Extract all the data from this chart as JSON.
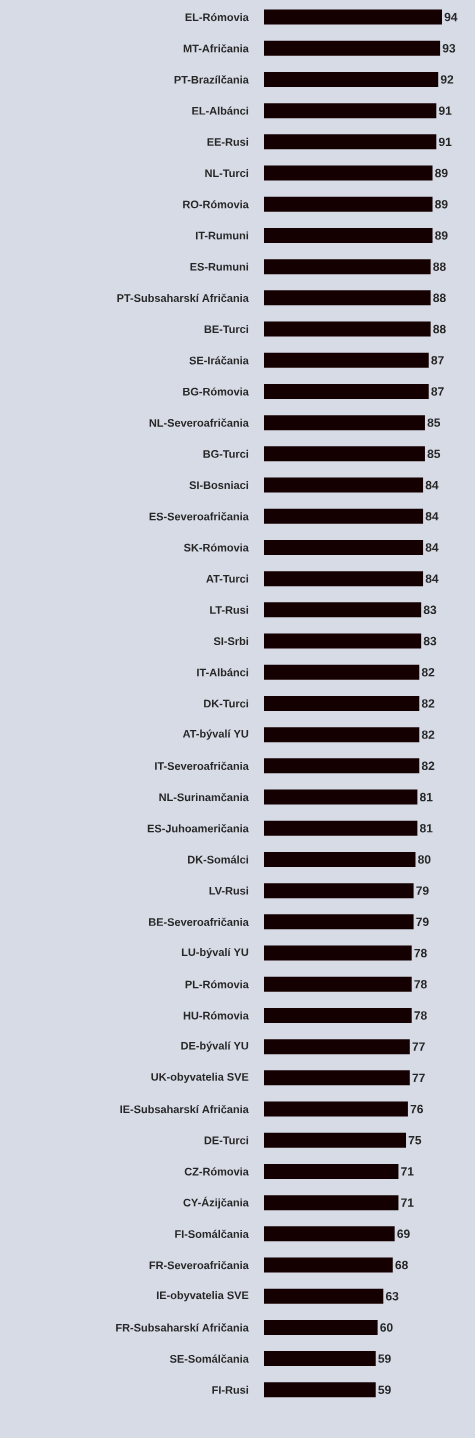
{
  "chart_data": {
    "type": "bar",
    "orientation": "horizontal",
    "categories": [
      "EL-Rómovia",
      "MT-Afričania",
      "PT-Brazílčania",
      "EL-Albánci",
      "EE-Rusi",
      "NL-Turci",
      "RO-Rómovia",
      "IT-Rumuni",
      "ES-Rumuni",
      "PT-Subsaharskí Afričania",
      "BE-Turci",
      "SE-Iráčania",
      "BG-Rómovia",
      "NL-Severoafričania",
      "BG-Turci",
      "SI-Bosniaci",
      "ES-Severoafričania",
      "SK-Rómovia",
      "AT-Turci",
      "LT-Rusi",
      "SI-Srbi",
      "IT-Albánci",
      "DK-Turci",
      "AT-bývalí YU",
      "IT-Severoafričania",
      "NL-Surinamčania",
      "ES-Juhoameričania",
      "DK-Somálci",
      "LV-Rusi",
      "BE-Severoafričania",
      "LU-bývalí YU",
      "PL-Rómovia",
      "HU-Rómovia",
      "DE-bývalí YU",
      "UK-obyvatelia SVE",
      "IE-Subsaharskí Afričania",
      "DE-Turci",
      "CZ-Rómovia",
      "CY-Ázijčania",
      "FI-Somálčania",
      "FR-Severoafričania",
      "IE-obyvatelia SVE",
      "FR-Subsaharskí Afričania",
      "SE-Somálčania",
      "FI-Rusi"
    ],
    "values": [
      94,
      93,
      92,
      91,
      91,
      89,
      89,
      89,
      88,
      88,
      88,
      87,
      87,
      85,
      85,
      84,
      84,
      84,
      84,
      83,
      83,
      82,
      82,
      82,
      82,
      81,
      81,
      80,
      79,
      79,
      78,
      78,
      78,
      77,
      77,
      76,
      75,
      71,
      71,
      69,
      68,
      63,
      60,
      59,
      59
    ],
    "color": "#140000",
    "data_labels": true
  }
}
